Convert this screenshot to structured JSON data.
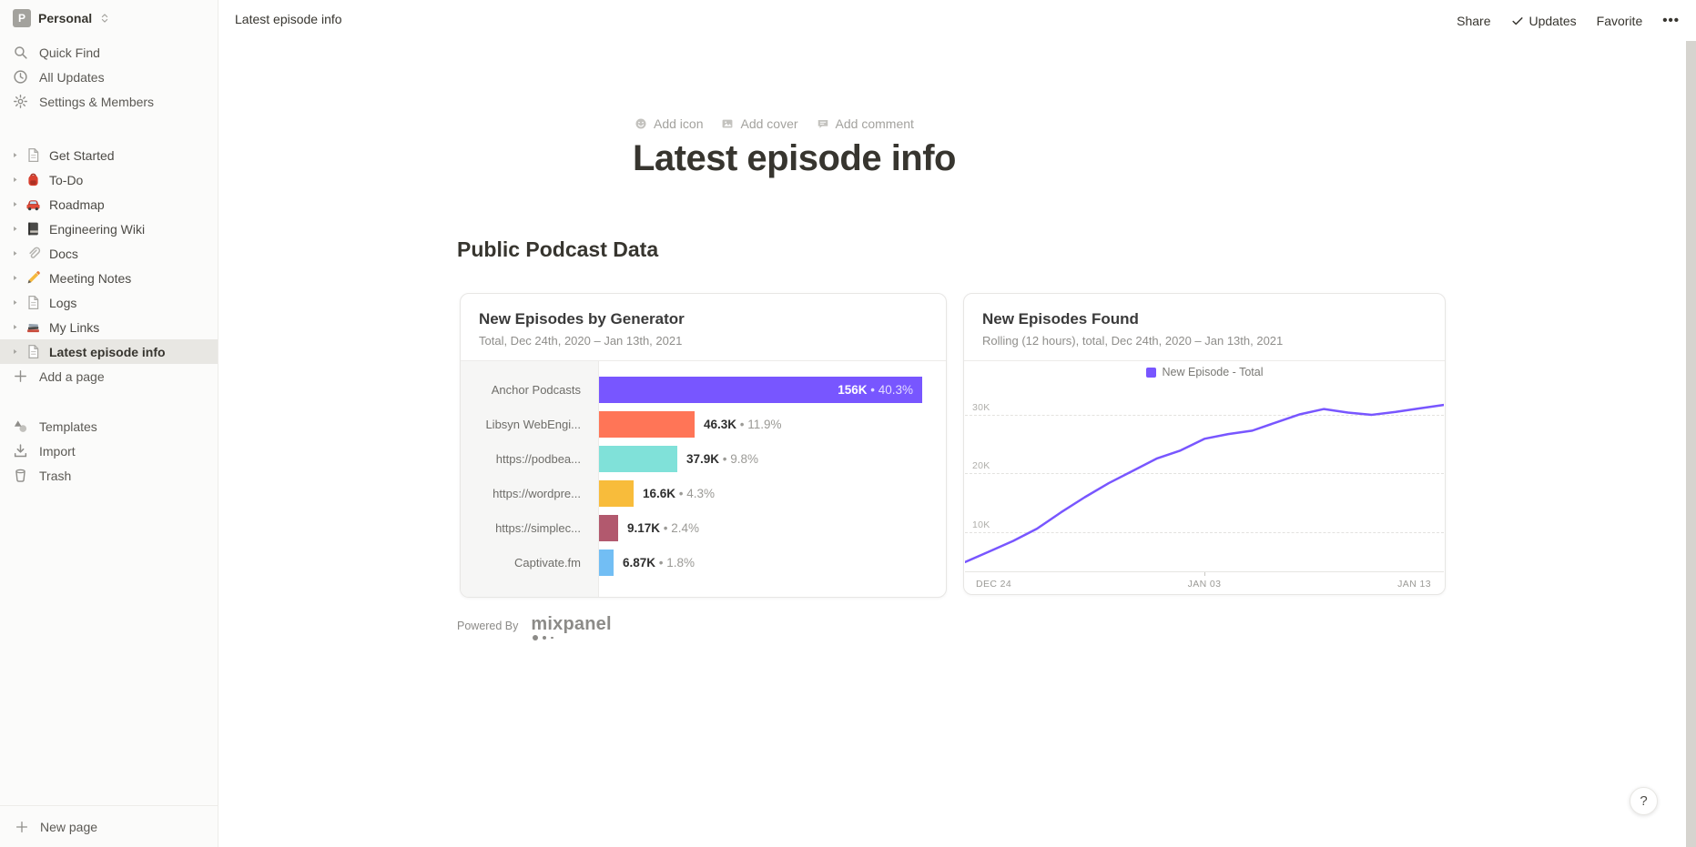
{
  "workspace": {
    "name": "Personal",
    "avatar_letter": "P"
  },
  "sidebar": {
    "top_items": [
      {
        "label": "Quick Find",
        "icon": "search-icon"
      },
      {
        "label": "All Updates",
        "icon": "clock-icon"
      },
      {
        "label": "Settings & Members",
        "icon": "gear-icon"
      }
    ],
    "pages": [
      {
        "label": "Get Started",
        "icon": "page-icon",
        "selected": false
      },
      {
        "label": "To-Do",
        "icon": "backpack-icon",
        "selected": false
      },
      {
        "label": "Roadmap",
        "icon": "car-icon",
        "selected": false
      },
      {
        "label": "Engineering Wiki",
        "icon": "notebook-icon",
        "selected": false
      },
      {
        "label": "Docs",
        "icon": "paperclip-icon",
        "selected": false
      },
      {
        "label": "Meeting Notes",
        "icon": "pencil-icon",
        "selected": false
      },
      {
        "label": "Logs",
        "icon": "page-icon",
        "selected": false
      },
      {
        "label": "My Links",
        "icon": "books-icon",
        "selected": false
      },
      {
        "label": "Latest episode info",
        "icon": "page-icon",
        "selected": true
      }
    ],
    "add_page_label": "Add a page",
    "bottom_items": [
      {
        "label": "Templates",
        "icon": "templates-icon"
      },
      {
        "label": "Import",
        "icon": "import-icon"
      },
      {
        "label": "Trash",
        "icon": "trash-icon"
      }
    ],
    "new_page_label": "New page"
  },
  "topbar": {
    "breadcrumb": "Latest episode info",
    "share_label": "Share",
    "updates_label": "Updates",
    "favorite_label": "Favorite",
    "more_label": "•••"
  },
  "page": {
    "controls": [
      {
        "label": "Add icon",
        "icon": "smiley-icon"
      },
      {
        "label": "Add cover",
        "icon": "image-icon"
      },
      {
        "label": "Add comment",
        "icon": "comment-icon"
      }
    ],
    "title": "Latest episode info",
    "section_heading": "Public Podcast Data",
    "powered_by_label": "Powered By",
    "brand": "mixpanel"
  },
  "chart_data": [
    {
      "type": "bar",
      "orientation": "horizontal",
      "title": "New Episodes by Generator",
      "subtitle": "Total, Dec 24th, 2020 – Jan 13th, 2021",
      "categories": [
        "Anchor Podcasts",
        "Libsyn WebEngi...",
        "https://podbea...",
        "https://wordpre...",
        "https://simplec...",
        "Captivate.fm"
      ],
      "values": [
        156000,
        46300,
        37900,
        16600,
        9170,
        6870
      ],
      "value_labels": [
        "156K",
        "46.3K",
        "37.9K",
        "16.6K",
        "9.17K",
        "6.87K"
      ],
      "pct_labels": [
        "40.3%",
        "11.9%",
        "9.8%",
        "4.3%",
        "2.4%",
        "1.8%"
      ],
      "separator": "•",
      "bar_colors": [
        "#7856FF",
        "#FF7557",
        "#80E1D9",
        "#F8BC3B",
        "#B2596E",
        "#72BEF4"
      ],
      "xlim": [
        0,
        162000
      ],
      "grid": false
    },
    {
      "type": "line",
      "title": "New Episodes Found",
      "subtitle": "Rolling (12 hours), total, Dec 24th, 2020 – Jan 13th, 2021",
      "legend": [
        {
          "label": "New Episode - Total",
          "color": "#7856FF"
        }
      ],
      "legend_position": "top-center",
      "y_ticks": [
        {
          "label": "10K",
          "value_k": 10
        },
        {
          "label": "20K",
          "value_k": 20
        },
        {
          "label": "30K",
          "value_k": 30
        }
      ],
      "x_ticks": [
        {
          "label": "DEC 24",
          "pos": "left"
        },
        {
          "label": "JAN 03",
          "pos": "center"
        },
        {
          "label": "JAN 13",
          "pos": "right"
        }
      ],
      "ylim_k": [
        0,
        35
      ],
      "grid": "dashed-horizontal",
      "series": [
        {
          "name": "New Episode - Total",
          "color": "#7856FF",
          "x_range": [
            "Dec 24, 2020",
            "Jan 13, 2021"
          ],
          "values_k": [
            4.7,
            6.5,
            8.3,
            10.4,
            13.2,
            15.8,
            18.2,
            20.3,
            22.4,
            23.8,
            25.8,
            26.6,
            27.2,
            28.6,
            30.0,
            30.9,
            30.3,
            29.9,
            30.4,
            31.0,
            31.6
          ]
        }
      ]
    }
  ],
  "help_button": {
    "label": "?"
  }
}
